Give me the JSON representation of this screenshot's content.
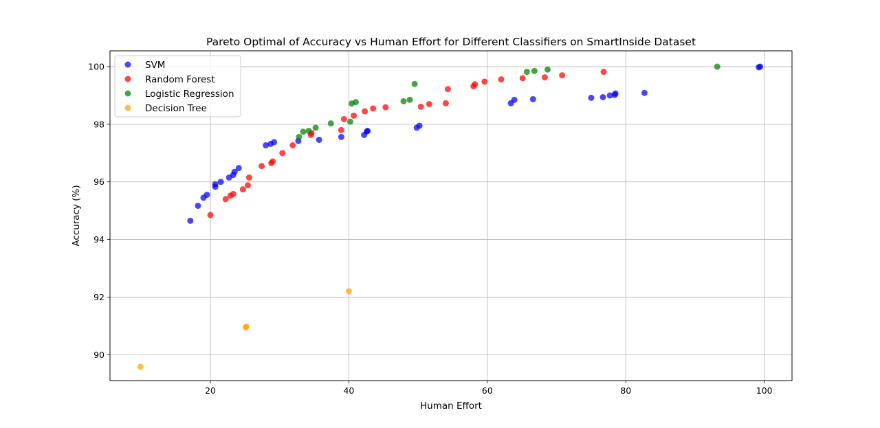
{
  "chart_data": {
    "type": "scatter",
    "title": "Pareto Optimal of Accuracy vs Human Effort for Different Classifiers on SmartInside Dataset",
    "xlabel": "Human Effort",
    "ylabel": "Accuracy (%)",
    "xlim": [
      5.5,
      104
    ],
    "ylim": [
      89.1,
      100.55
    ],
    "xticks": [
      20,
      40,
      60,
      80,
      100
    ],
    "yticks": [
      90,
      92,
      94,
      96,
      98,
      100
    ],
    "grid": true,
    "legend_position": "top-left",
    "series": [
      {
        "name": "SVM",
        "color": "#0000ff",
        "x": [
          17.1,
          18.2,
          19.0,
          19.5,
          20.7,
          20.7,
          21.5,
          22.7,
          23.3,
          23.5,
          24.1,
          28.0,
          28.7,
          29.2,
          32.7,
          35.7,
          38.9,
          42.2,
          42.6,
          42.7,
          49.8,
          50.2,
          63.4,
          63.9,
          66.6,
          75.0,
          76.7,
          77.7,
          78.4,
          78.5,
          82.7,
          99.2,
          99.4
        ],
        "y": [
          94.65,
          95.17,
          95.45,
          95.55,
          95.83,
          95.92,
          96.0,
          96.15,
          96.24,
          96.35,
          96.48,
          97.27,
          97.32,
          97.38,
          97.42,
          97.46,
          97.56,
          97.63,
          97.75,
          97.77,
          97.88,
          97.95,
          98.73,
          98.85,
          98.87,
          98.92,
          98.94,
          99.0,
          99.02,
          99.07,
          99.09,
          99.98,
          100.0
        ]
      },
      {
        "name": "Random Forest",
        "color": "#ff0000",
        "x": [
          20.0,
          22.2,
          22.9,
          23.3,
          24.7,
          25.4,
          25.6,
          27.4,
          28.8,
          29.0,
          30.4,
          31.9,
          34.5,
          34.6,
          38.9,
          39.3,
          40.7,
          42.3,
          43.5,
          45.3,
          50.4,
          51.6,
          54.0,
          54.3,
          58.0,
          58.2,
          59.6,
          62.0,
          65.1,
          68.3,
          70.8,
          76.8
        ],
        "y": [
          94.85,
          95.4,
          95.52,
          95.58,
          95.74,
          95.88,
          96.15,
          96.55,
          96.65,
          96.71,
          97.0,
          97.27,
          97.63,
          97.7,
          97.8,
          98.18,
          98.3,
          98.45,
          98.55,
          98.59,
          98.61,
          98.7,
          98.73,
          99.22,
          99.32,
          99.39,
          99.48,
          99.56,
          99.6,
          99.63,
          99.7,
          99.82
        ]
      },
      {
        "name": "Logistic Regression",
        "color": "#008000",
        "x": [
          32.8,
          33.4,
          34.2,
          35.2,
          37.4,
          40.2,
          40.4,
          41.0,
          47.9,
          48.8,
          49.5,
          65.7,
          66.8,
          68.7,
          93.2
        ],
        "y": [
          97.56,
          97.74,
          97.77,
          97.88,
          98.03,
          98.09,
          98.72,
          98.77,
          98.8,
          98.85,
          99.4,
          99.82,
          99.85,
          99.9,
          100.0
        ]
      },
      {
        "name": "Decision Tree",
        "color": "#ffa500",
        "x": [
          9.9,
          25.1,
          25.2,
          40.0
        ],
        "y": [
          89.58,
          90.95,
          90.97,
          92.2
        ]
      }
    ]
  }
}
